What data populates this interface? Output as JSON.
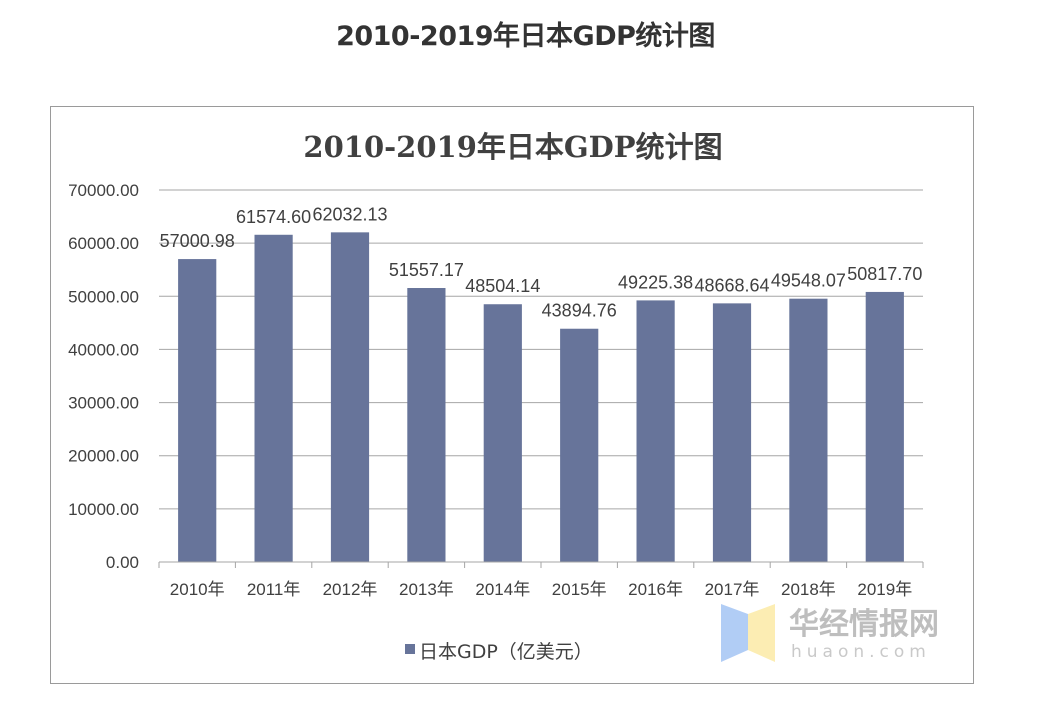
{
  "page": {
    "title": "2010-2019年日本GDP统计图"
  },
  "chart_data": {
    "type": "bar",
    "title": "2010-2019年日本GDP统计图",
    "xlabel": "",
    "ylabel": "",
    "categories": [
      "2010年",
      "2011年",
      "2012年",
      "2013年",
      "2014年",
      "2015年",
      "2016年",
      "2017年",
      "2018年",
      "2019年"
    ],
    "series": [
      {
        "name": "日本GDP（亿美元）",
        "color": "#67749a",
        "values": [
          57000.98,
          61574.6,
          62032.13,
          51557.17,
          48504.14,
          43894.76,
          49225.38,
          48668.64,
          49548.07,
          50817.7
        ],
        "labels": [
          "57000.98",
          "61574.60",
          "62032.13",
          "51557.17",
          "48504.14",
          "43894.76",
          "49225.38",
          "48668.64",
          "49548.07",
          "50817.70"
        ]
      }
    ],
    "ylim": [
      0,
      70000
    ],
    "yticks": [
      0,
      10000,
      20000,
      30000,
      40000,
      50000,
      60000,
      70000
    ],
    "ytick_labels": [
      "0.00",
      "10000.00",
      "20000.00",
      "30000.00",
      "40000.00",
      "50000.00",
      "60000.00",
      "70000.00"
    ],
    "grid": true,
    "legend": {
      "position": "bottom",
      "entries": [
        "日本GDP（亿美元）"
      ]
    }
  },
  "watermark": {
    "cn": "华经情报网",
    "en": "huaon.com",
    "colors": {
      "left": "#a9c8f5",
      "right": "#fcecab"
    }
  }
}
